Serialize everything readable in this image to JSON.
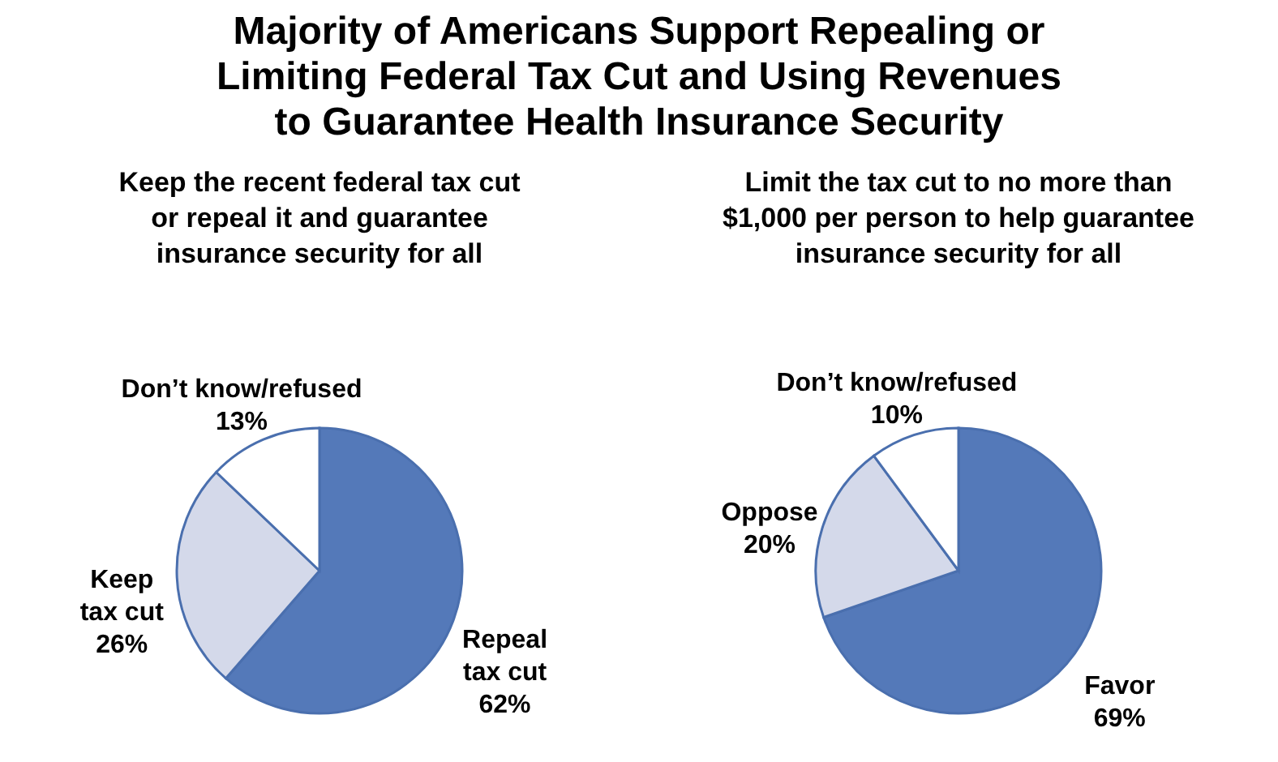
{
  "chart_data": [
    {
      "type": "pie",
      "title": "Majority of Americans Support Repealing or Limiting Federal Tax Cut and Using Revenues to Guarantee Health Insurance Security",
      "subtitle": "Keep the recent federal tax cut or repeal it and guarantee insurance security for all",
      "categories": [
        "Repeal tax cut",
        "Keep tax cut",
        "Don’t know/refused"
      ],
      "values": [
        62,
        26,
        13
      ],
      "colors": [
        "#5479b9",
        "#d4d9ea",
        "#ffffff"
      ],
      "value_labels": [
        "62%",
        "26%",
        "13%"
      ]
    },
    {
      "type": "pie",
      "subtitle": "Limit the tax cut to no more than $1,000 per person to help guarantee insurance security for all",
      "categories": [
        "Favor",
        "Oppose",
        "Don’t know/refused"
      ],
      "values": [
        69,
        20,
        10
      ],
      "colors": [
        "#5479b9",
        "#d4d9ea",
        "#ffffff"
      ],
      "value_labels": [
        "69%",
        "20%",
        "10%"
      ]
    }
  ]
}
